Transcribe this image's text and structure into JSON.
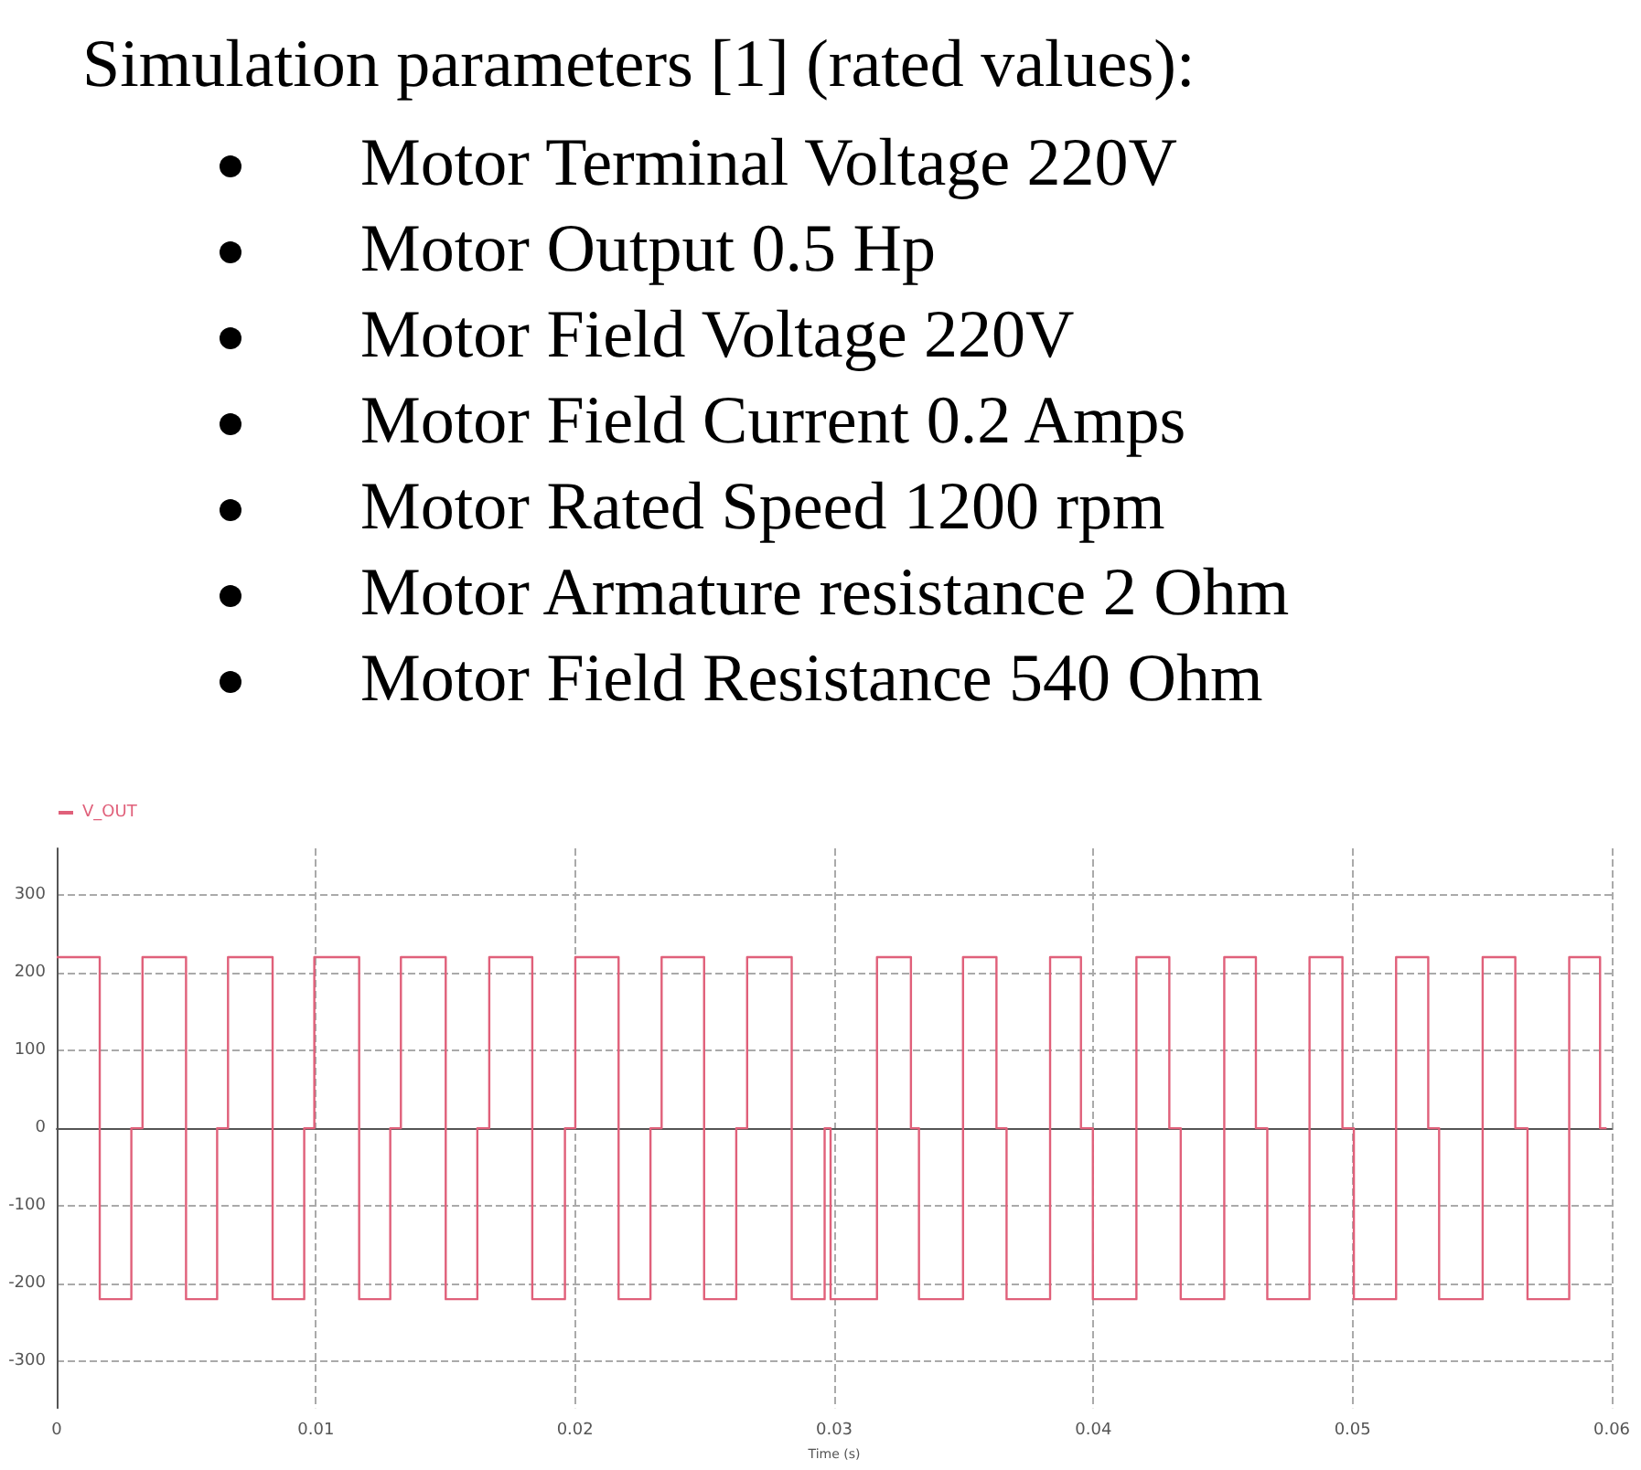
{
  "chart_data": {
    "type": "step",
    "title": "Simulation parameters [1] (rated values):",
    "annotations": [
      "Motor Terminal Voltage 220V",
      "Motor Output 0.5 Hp",
      "Motor Field Voltage 220V",
      "Motor Field Current 0.2 Amps",
      "Motor Rated Speed 1200 rpm",
      "Motor Armature resistance 2 Ohm",
      "Motor Field Resistance 540 Ohm"
    ],
    "xlabel": "Time (s)",
    "x": [
      0,
      0.00166,
      0.00288,
      0.00331,
      0.00499,
      0.00619,
      0.00661,
      0.00833,
      0.00955,
      0.00994,
      0.01167,
      0.01287,
      0.01328,
      0.01501,
      0.01623,
      0.01669,
      0.01835,
      0.01961,
      0.02001,
      0.02168,
      0.02291,
      0.02334,
      0.02498,
      0.02622,
      0.02664,
      0.02836,
      0.02963,
      0.02986,
      0.03165,
      0.03296,
      0.03327,
      0.03497,
      0.03626,
      0.03665,
      0.03833,
      0.03952,
      0.03998,
      0.04166,
      0.04293,
      0.04337,
      0.04505,
      0.04627,
      0.04671,
      0.04834,
      0.04961,
      0.05005,
      0.05168,
      0.05292,
      0.05334,
      0.05502,
      0.05628,
      0.05675,
      0.05836,
      0.05955,
      0.0598
    ],
    "series": [
      {
        "name": "V_OUT",
        "color": "#e0607a",
        "values": [
          220,
          -220,
          0,
          220,
          -220,
          0,
          220,
          -220,
          0,
          220,
          -220,
          0,
          220,
          -220,
          0,
          220,
          -220,
          0,
          220,
          -220,
          0,
          220,
          -220,
          0,
          220,
          -220,
          0,
          -220,
          220,
          0,
          -220,
          220,
          0,
          -220,
          220,
          0,
          -220,
          220,
          0,
          -220,
          220,
          0,
          -220,
          220,
          0,
          -220,
          220,
          0,
          -220,
          220,
          0,
          -220,
          220,
          0,
          0
        ]
      }
    ],
    "xlim": [
      0,
      0.06
    ],
    "xticks": [
      0,
      0.01,
      0.02,
      0.03,
      0.04,
      0.05,
      0.06
    ],
    "ylim": [
      -360,
      360
    ],
    "yticks": [
      -300,
      -200,
      -100,
      0,
      100,
      200,
      300
    ],
    "grid": true,
    "legend": "top left",
    "marker": "none"
  }
}
